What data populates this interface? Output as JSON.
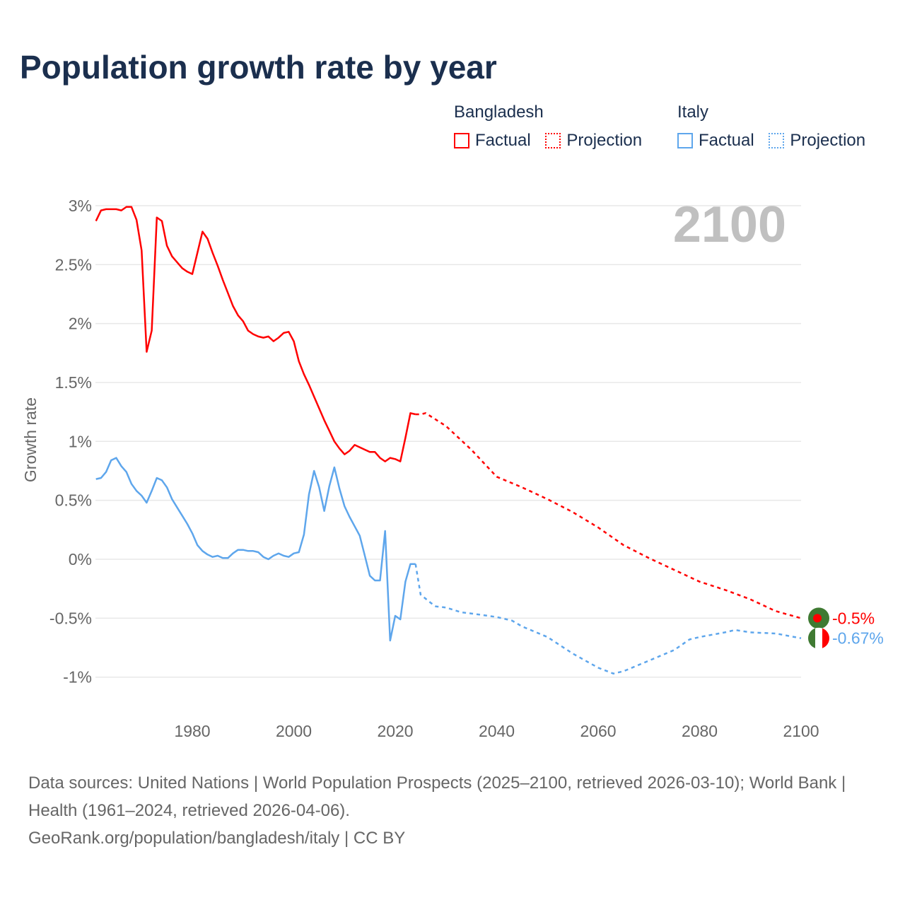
{
  "title": "Population growth rate by year",
  "legend": {
    "groups": [
      {
        "name": "Bangladesh",
        "factual": "Factual",
        "projection": "Projection"
      },
      {
        "name": "Italy",
        "factual": "Factual",
        "projection": "Projection"
      }
    ]
  },
  "footer": {
    "sources": "Data sources: United Nations | World Population Prospects (2025–2100, retrieved 2026-03-10); World Bank | Health (1961–2024, retrieved 2026-04-06).",
    "link": "GeoRank.org/population/bangladesh/italy | CC BY"
  },
  "colors": {
    "bangladesh": "#ff0000",
    "italy": "#5ea6ec",
    "title": "#1b2f4e",
    "year": "#c0c0c0"
  },
  "chart_data": {
    "type": "line",
    "title": "Population growth rate by year",
    "xlabel": "",
    "ylabel": "Growth rate",
    "current_year_label": "2100",
    "xlim": [
      1961,
      2100
    ],
    "ylim": [
      -1.2,
      3.0
    ],
    "x_ticks": [
      1980,
      2000,
      2020,
      2040,
      2060,
      2080,
      2100
    ],
    "y_ticks": [
      {
        "v": 3,
        "label": "3%"
      },
      {
        "v": 2.5,
        "label": "2.5%"
      },
      {
        "v": 2,
        "label": "2%"
      },
      {
        "v": 1.5,
        "label": "1.5%"
      },
      {
        "v": 1,
        "label": "1%"
      },
      {
        "v": 0.5,
        "label": "0.5%"
      },
      {
        "v": 0,
        "label": "0%"
      },
      {
        "v": -0.5,
        "label": "-0.5%"
      },
      {
        "v": -1,
        "label": "-1%"
      }
    ],
    "grid": true,
    "legend_position": "top-right",
    "series": [
      {
        "name": "Bangladesh",
        "key": "bangladesh",
        "end_label": "-0.5%",
        "factual": {
          "x": [
            1961,
            1962,
            1963,
            1964,
            1965,
            1966,
            1967,
            1968,
            1969,
            1970,
            1971,
            1972,
            1973,
            1974,
            1975,
            1976,
            1977,
            1978,
            1979,
            1980,
            1981,
            1982,
            1983,
            1984,
            1985,
            1986,
            1987,
            1988,
            1989,
            1990,
            1991,
            1992,
            1993,
            1994,
            1995,
            1996,
            1997,
            1998,
            1999,
            2000,
            2001,
            2002,
            2003,
            2004,
            2005,
            2006,
            2007,
            2008,
            2009,
            2010,
            2011,
            2012,
            2013,
            2014,
            2015,
            2016,
            2017,
            2018,
            2019,
            2020,
            2021,
            2022,
            2023,
            2024
          ],
          "y": [
            2.87,
            2.96,
            2.97,
            2.97,
            2.97,
            2.96,
            2.99,
            2.99,
            2.88,
            2.62,
            1.76,
            1.94,
            2.9,
            2.87,
            2.66,
            2.57,
            2.52,
            2.47,
            2.44,
            2.42,
            2.6,
            2.78,
            2.72,
            2.6,
            2.49,
            2.37,
            2.26,
            2.15,
            2.07,
            2.02,
            1.94,
            1.91,
            1.89,
            1.88,
            1.89,
            1.85,
            1.88,
            1.92,
            1.93,
            1.85,
            1.68,
            1.57,
            1.48,
            1.38,
            1.28,
            1.18,
            1.09,
            1.0,
            0.94,
            0.89,
            0.92,
            0.97,
            0.95,
            0.93,
            0.91,
            0.91,
            0.86,
            0.83,
            0.86,
            0.85,
            0.83,
            1.03,
            1.24,
            1.23
          ]
        },
        "projection": {
          "x": [
            2024,
            2025,
            2026,
            2030,
            2035,
            2040,
            2045,
            2050,
            2055,
            2060,
            2065,
            2070,
            2075,
            2080,
            2085,
            2090,
            2095,
            2100
          ],
          "y": [
            1.23,
            1.23,
            1.24,
            1.13,
            0.93,
            0.7,
            0.61,
            0.51,
            0.4,
            0.27,
            0.12,
            0.01,
            -0.09,
            -0.19,
            -0.26,
            -0.34,
            -0.44,
            -0.5
          ]
        }
      },
      {
        "name": "Italy",
        "key": "italy",
        "end_label": "-0.67%",
        "factual": {
          "x": [
            1961,
            1962,
            1963,
            1964,
            1965,
            1966,
            1967,
            1968,
            1969,
            1970,
            1971,
            1972,
            1973,
            1974,
            1975,
            1976,
            1977,
            1978,
            1979,
            1980,
            1981,
            1982,
            1983,
            1984,
            1985,
            1986,
            1987,
            1988,
            1989,
            1990,
            1991,
            1992,
            1993,
            1994,
            1995,
            1996,
            1997,
            1998,
            1999,
            2000,
            2001,
            2002,
            2003,
            2004,
            2005,
            2006,
            2007,
            2008,
            2009,
            2010,
            2011,
            2012,
            2013,
            2014,
            2015,
            2016,
            2017,
            2018,
            2019,
            2020,
            2021,
            2022,
            2023,
            2024
          ],
          "y": [
            0.68,
            0.69,
            0.74,
            0.84,
            0.86,
            0.79,
            0.74,
            0.64,
            0.58,
            0.54,
            0.48,
            0.58,
            0.69,
            0.67,
            0.61,
            0.51,
            0.44,
            0.37,
            0.3,
            0.22,
            0.12,
            0.07,
            0.04,
            0.02,
            0.03,
            0.01,
            0.01,
            0.05,
            0.08,
            0.08,
            0.07,
            0.07,
            0.06,
            0.02,
            0.0,
            0.03,
            0.05,
            0.03,
            0.02,
            0.05,
            0.06,
            0.21,
            0.55,
            0.75,
            0.61,
            0.41,
            0.62,
            0.78,
            0.6,
            0.45,
            0.36,
            0.28,
            0.2,
            0.03,
            -0.14,
            -0.18,
            -0.18,
            0.24,
            -0.69,
            -0.48,
            -0.51,
            -0.19,
            -0.04,
            -0.04
          ]
        },
        "projection": {
          "x": [
            2024,
            2025,
            2027,
            2028,
            2030,
            2033,
            2035,
            2040,
            2043,
            2045,
            2050,
            2055,
            2060,
            2063,
            2065,
            2070,
            2075,
            2078,
            2080,
            2085,
            2087,
            2090,
            2095,
            2100
          ],
          "y": [
            -0.04,
            -0.3,
            -0.37,
            -0.4,
            -0.41,
            -0.45,
            -0.46,
            -0.49,
            -0.52,
            -0.57,
            -0.66,
            -0.8,
            -0.92,
            -0.97,
            -0.95,
            -0.86,
            -0.77,
            -0.68,
            -0.66,
            -0.62,
            -0.6,
            -0.62,
            -0.63,
            -0.67
          ]
        }
      }
    ]
  }
}
